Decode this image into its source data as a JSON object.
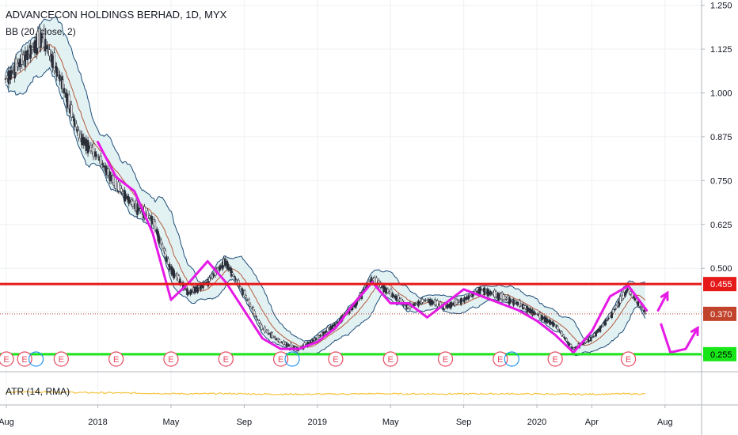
{
  "chart_data": {
    "type": "candlestick",
    "title": "ADVANCECON HOLDINGS BERHAD, 1D, MYX",
    "price_axis": {
      "ticks": [
        1.25,
        1.125,
        1.0,
        0.875,
        0.75,
        0.625,
        0.5,
        0.375,
        0.25
      ],
      "tick_labels": [
        "1.250",
        "1.125",
        "1.000",
        "0.875",
        "0.750",
        "0.625",
        "0.500",
        "0.375",
        "0.250"
      ],
      "range": [
        0.205,
        1.265
      ]
    },
    "time_axis": {
      "labels": [
        "Aug",
        "2018",
        "May",
        "Sep",
        "2019",
        "May",
        "Sep",
        "2020",
        "Apr",
        "Aug"
      ],
      "range": [
        "2017-08",
        "2020-10"
      ]
    },
    "indicators": {
      "bb_label": "BB (20, close, 2)",
      "atr_label": "ATR (14, RMA)",
      "atr_color": "#f5c542",
      "bb_fill_color": "#cfe8ea",
      "bb_line_color": "#1f4e79"
    },
    "horizontal_levels": [
      {
        "label": "0.455",
        "value": 0.455,
        "color": "#e61919"
      },
      {
        "label": "0.370",
        "value": 0.37,
        "color": "#c1432c",
        "dotted": true
      },
      {
        "label": "0.255",
        "value": 0.255,
        "color": "#19e619"
      }
    ],
    "price_series": [
      {
        "date": "2017-08",
        "value": 1.04
      },
      {
        "date": "2017-09",
        "value": 1.1
      },
      {
        "date": "2017-10",
        "value": 1.16
      },
      {
        "date": "2017-11",
        "value": 1.04
      },
      {
        "date": "2017-12",
        "value": 0.88
      },
      {
        "date": "2018-01",
        "value": 0.82
      },
      {
        "date": "2018-02",
        "value": 0.74
      },
      {
        "date": "2018-03",
        "value": 0.68
      },
      {
        "date": "2018-04",
        "value": 0.64
      },
      {
        "date": "2018-05",
        "value": 0.5
      },
      {
        "date": "2018-06",
        "value": 0.43
      },
      {
        "date": "2018-07",
        "value": 0.46
      },
      {
        "date": "2018-08",
        "value": 0.52
      },
      {
        "date": "2018-09",
        "value": 0.43
      },
      {
        "date": "2018-10",
        "value": 0.33
      },
      {
        "date": "2018-11",
        "value": 0.29
      },
      {
        "date": "2018-12",
        "value": 0.27
      },
      {
        "date": "2019-01",
        "value": 0.3
      },
      {
        "date": "2019-02",
        "value": 0.34
      },
      {
        "date": "2019-03",
        "value": 0.39
      },
      {
        "date": "2019-04",
        "value": 0.47
      },
      {
        "date": "2019-05",
        "value": 0.43
      },
      {
        "date": "2019-06",
        "value": 0.39
      },
      {
        "date": "2019-07",
        "value": 0.41
      },
      {
        "date": "2019-08",
        "value": 0.39
      },
      {
        "date": "2019-09",
        "value": 0.41
      },
      {
        "date": "2019-10",
        "value": 0.44
      },
      {
        "date": "2019-11",
        "value": 0.42
      },
      {
        "date": "2019-12",
        "value": 0.4
      },
      {
        "date": "2020-01",
        "value": 0.37
      },
      {
        "date": "2020-02",
        "value": 0.34
      },
      {
        "date": "2020-03",
        "value": 0.27
      },
      {
        "date": "2020-04",
        "value": 0.3
      },
      {
        "date": "2020-05",
        "value": 0.36
      },
      {
        "date": "2020-06",
        "value": 0.44
      },
      {
        "date": "2020-07",
        "value": 0.37
      }
    ],
    "drawings": [
      {
        "type": "path",
        "color": "#e619e6",
        "points": [
          [
            "2018-01",
            0.86
          ],
          [
            "2018-02",
            0.76
          ],
          [
            "2018-03",
            0.72
          ],
          [
            "2018-04",
            0.6
          ],
          [
            "2018-05",
            0.41
          ],
          [
            "2018-06",
            0.46
          ],
          [
            "2018-07",
            0.52
          ],
          [
            "2018-08",
            0.46
          ],
          [
            "2018-09",
            0.38
          ],
          [
            "2018-10",
            0.3
          ],
          [
            "2018-11",
            0.27
          ],
          [
            "2018-12",
            0.27
          ],
          [
            "2019-01",
            0.29
          ],
          [
            "2019-02",
            0.33
          ],
          [
            "2019-03",
            0.4
          ],
          [
            "2019-04",
            0.46
          ],
          [
            "2019-05",
            0.4
          ],
          [
            "2019-06",
            0.4
          ],
          [
            "2019-07",
            0.36
          ],
          [
            "2019-08",
            0.4
          ],
          [
            "2019-09",
            0.44
          ],
          [
            "2019-10",
            0.42
          ],
          [
            "2019-11",
            0.4
          ],
          [
            "2019-12",
            0.38
          ],
          [
            "2020-01",
            0.35
          ],
          [
            "2020-02",
            0.31
          ],
          [
            "2020-03",
            0.26
          ],
          [
            "2020-04",
            0.32
          ],
          [
            "2020-05",
            0.42
          ],
          [
            "2020-06",
            0.45
          ],
          [
            "2020-07",
            0.38
          ]
        ]
      },
      {
        "type": "arrow",
        "color": "#e619e6",
        "points": [
          [
            "2020-07-20",
            0.38
          ],
          [
            "2020-08-05",
            0.43
          ]
        ]
      },
      {
        "type": "arrow",
        "color": "#e619e6",
        "points": [
          [
            "2020-07-25",
            0.34
          ],
          [
            "2020-08-10",
            0.26
          ],
          [
            "2020-09-05",
            0.27
          ],
          [
            "2020-09-25",
            0.33
          ]
        ]
      }
    ],
    "events": [
      {
        "date": "2017-08",
        "label": "E"
      },
      {
        "date": "2017-09",
        "label": "E"
      },
      {
        "date": "2017-11",
        "label": "E"
      },
      {
        "date": "2018-02",
        "label": "E"
      },
      {
        "date": "2018-05",
        "label": "E"
      },
      {
        "date": "2018-08",
        "label": "E"
      },
      {
        "date": "2018-11",
        "label": "E"
      },
      {
        "date": "2019-02",
        "label": "E"
      },
      {
        "date": "2019-05",
        "label": "E"
      },
      {
        "date": "2019-08",
        "label": "E"
      },
      {
        "date": "2019-11",
        "label": "E"
      },
      {
        "date": "2020-02",
        "label": "E"
      },
      {
        "date": "2020-06",
        "label": "E"
      }
    ],
    "dividends": [
      {
        "date": "2017-09-20"
      },
      {
        "date": "2018-11-20"
      },
      {
        "date": "2019-11-20"
      }
    ]
  }
}
